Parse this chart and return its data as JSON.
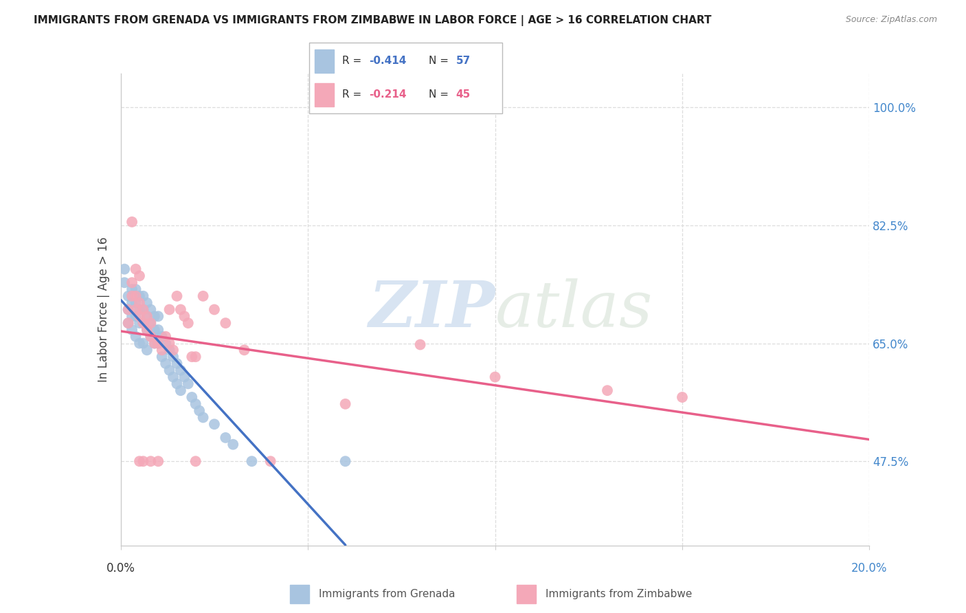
{
  "title": "IMMIGRANTS FROM GRENADA VS IMMIGRANTS FROM ZIMBABWE IN LABOR FORCE | AGE > 16 CORRELATION CHART",
  "source": "Source: ZipAtlas.com",
  "ylabel": "In Labor Force | Age > 16",
  "xlim": [
    0.0,
    0.2
  ],
  "ylim": [
    0.35,
    1.05
  ],
  "ytick_vals": [
    0.475,
    0.65,
    0.825,
    1.0
  ],
  "ytick_labels": [
    "47.5%",
    "65.0%",
    "82.5%",
    "100.0%"
  ],
  "xtick_vals": [
    0.0,
    0.05,
    0.1,
    0.15,
    0.2
  ],
  "grenada_R": -0.414,
  "grenada_N": 57,
  "zimbabwe_R": -0.214,
  "zimbabwe_N": 45,
  "grenada_color": "#a8c4e0",
  "zimbabwe_color": "#f4a8b8",
  "grenada_line_color": "#4472c4",
  "zimbabwe_line_color": "#e8608a",
  "grenada_scatter_x": [
    0.001,
    0.001,
    0.002,
    0.002,
    0.002,
    0.003,
    0.003,
    0.003,
    0.003,
    0.004,
    0.004,
    0.004,
    0.004,
    0.005,
    0.005,
    0.005,
    0.005,
    0.006,
    0.006,
    0.006,
    0.006,
    0.007,
    0.007,
    0.007,
    0.007,
    0.008,
    0.008,
    0.008,
    0.009,
    0.009,
    0.009,
    0.01,
    0.01,
    0.01,
    0.011,
    0.011,
    0.012,
    0.012,
    0.013,
    0.013,
    0.014,
    0.014,
    0.015,
    0.015,
    0.016,
    0.016,
    0.017,
    0.018,
    0.019,
    0.02,
    0.021,
    0.022,
    0.025,
    0.028,
    0.03,
    0.035,
    0.06
  ],
  "grenada_scatter_y": [
    0.74,
    0.76,
    0.7,
    0.72,
    0.68,
    0.71,
    0.73,
    0.69,
    0.67,
    0.71,
    0.73,
    0.69,
    0.66,
    0.7,
    0.72,
    0.68,
    0.65,
    0.7,
    0.72,
    0.68,
    0.65,
    0.69,
    0.71,
    0.67,
    0.64,
    0.68,
    0.7,
    0.66,
    0.67,
    0.69,
    0.65,
    0.67,
    0.69,
    0.65,
    0.66,
    0.63,
    0.65,
    0.62,
    0.64,
    0.61,
    0.63,
    0.6,
    0.62,
    0.59,
    0.61,
    0.58,
    0.6,
    0.59,
    0.57,
    0.56,
    0.55,
    0.54,
    0.53,
    0.51,
    0.5,
    0.475,
    0.475
  ],
  "zimbabwe_scatter_x": [
    0.002,
    0.002,
    0.003,
    0.003,
    0.004,
    0.004,
    0.005,
    0.005,
    0.006,
    0.006,
    0.007,
    0.007,
    0.008,
    0.008,
    0.009,
    0.01,
    0.011,
    0.012,
    0.013,
    0.014,
    0.015,
    0.016,
    0.017,
    0.018,
    0.019,
    0.02,
    0.022,
    0.025,
    0.028,
    0.033,
    0.003,
    0.004,
    0.005,
    0.013,
    0.02,
    0.04,
    0.06,
    0.08,
    0.1,
    0.13,
    0.15,
    0.005,
    0.006,
    0.008,
    0.01
  ],
  "zimbabwe_scatter_y": [
    0.7,
    0.68,
    0.72,
    0.74,
    0.7,
    0.72,
    0.69,
    0.71,
    0.68,
    0.7,
    0.67,
    0.69,
    0.66,
    0.68,
    0.65,
    0.65,
    0.64,
    0.66,
    0.65,
    0.64,
    0.72,
    0.7,
    0.69,
    0.68,
    0.63,
    0.63,
    0.72,
    0.7,
    0.68,
    0.64,
    0.83,
    0.76,
    0.75,
    0.7,
    0.475,
    0.475,
    0.56,
    0.648,
    0.6,
    0.58,
    0.57,
    0.475,
    0.475,
    0.475,
    0.475
  ],
  "watermark_zip": "ZIP",
  "watermark_atlas": "atlas",
  "bg_color": "#ffffff",
  "grid_color": "#dddddd",
  "spine_color": "#cccccc",
  "title_color": "#222222",
  "source_color": "#888888",
  "ylabel_color": "#444444",
  "ytick_color": "#4488cc",
  "xtick_left_color": "#333333",
  "xtick_right_color": "#4488cc"
}
